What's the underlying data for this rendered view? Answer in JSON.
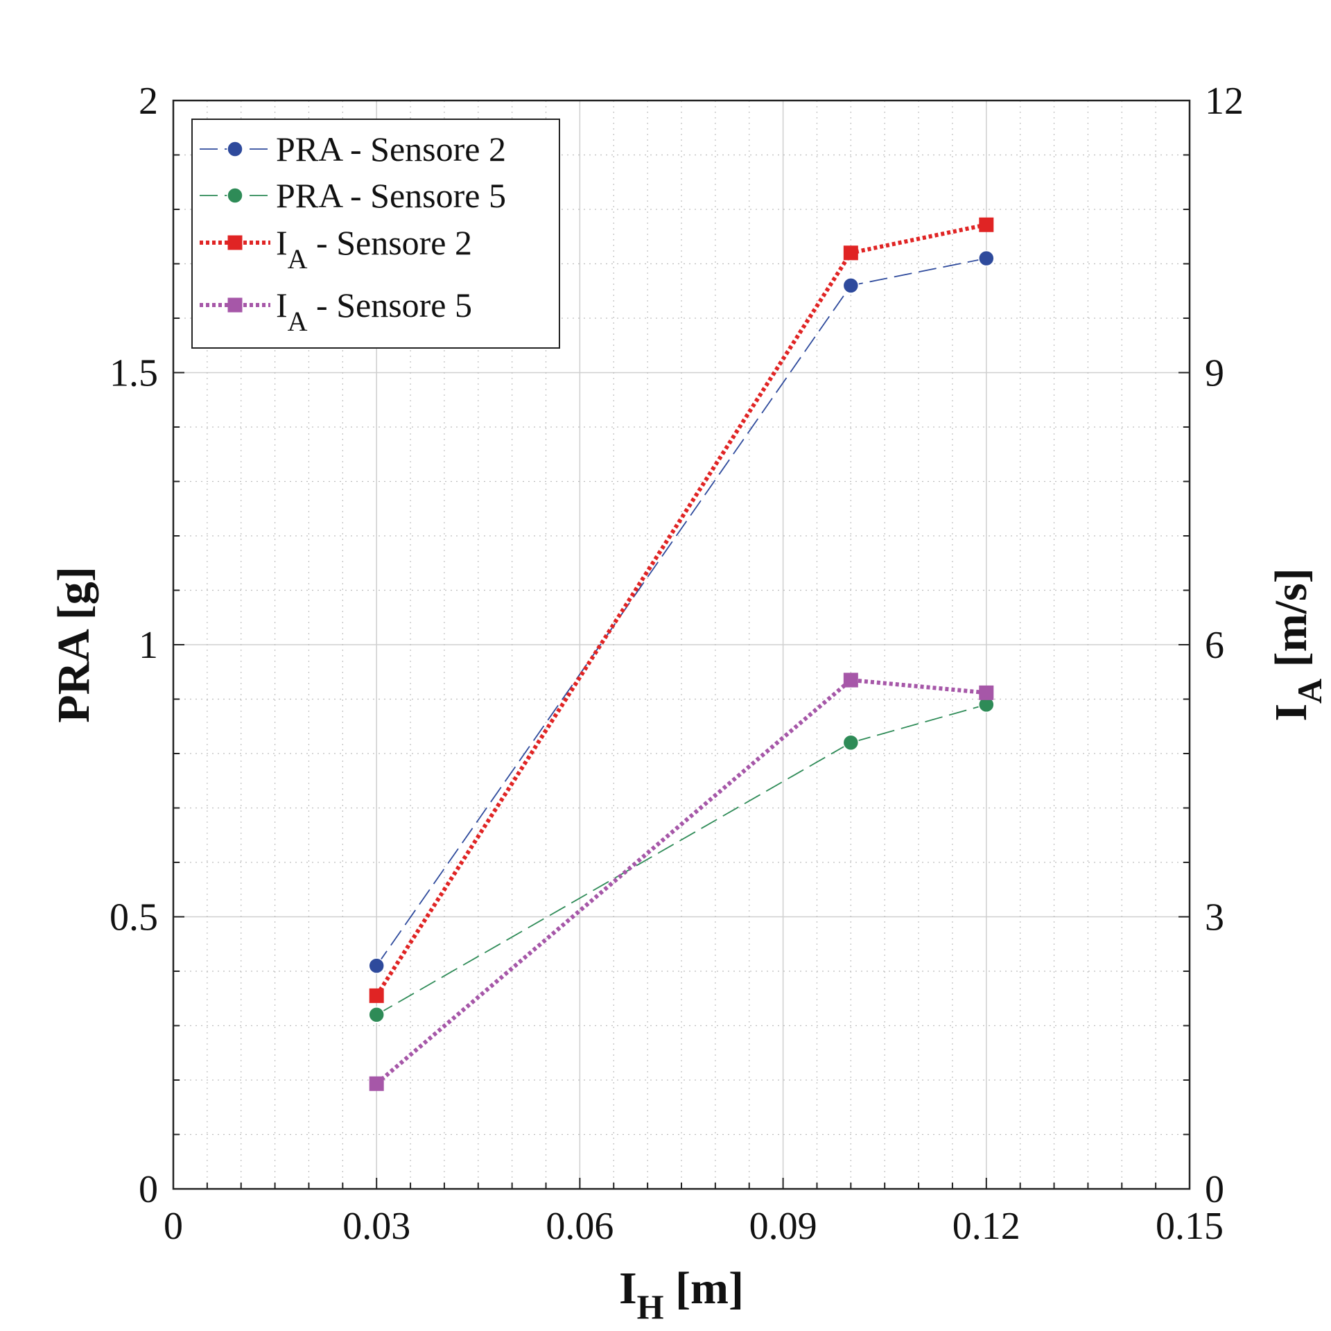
{
  "chart_data": {
    "type": "line",
    "x": [
      0.03,
      0.1,
      0.12
    ],
    "xlim": [
      0,
      0.15
    ],
    "xticks": [
      "0",
      "0.03",
      "0.06",
      "0.09",
      "0.12",
      "0.15"
    ],
    "xlabel": {
      "main": "I",
      "sub": "H",
      "rest": " [m]"
    },
    "ylim_left": [
      0,
      2
    ],
    "yticks_left": [
      "0",
      "0.5",
      "1",
      "1.5",
      "2"
    ],
    "ylabel_left": "PRA [g]",
    "ylim_right": [
      0,
      12
    ],
    "yticks_right": [
      "0",
      "3",
      "6",
      "9",
      "12"
    ],
    "ylabel_right": {
      "main": "I",
      "sub": "A",
      "rest": " [m/s]"
    },
    "grid": true,
    "legend_position": "top-left",
    "series": [
      {
        "name": {
          "main": "PRA - Sensore 2",
          "sub": "",
          "rest": ""
        },
        "axis": "left",
        "values": [
          0.41,
          1.66,
          1.71
        ],
        "color": "#2e4a9c",
        "marker": "circle",
        "line": "dashed"
      },
      {
        "name": {
          "main": "PRA - Sensore 5",
          "sub": "",
          "rest": ""
        },
        "axis": "left",
        "values": [
          0.32,
          0.82,
          0.89
        ],
        "color": "#2e8b57",
        "marker": "circle",
        "line": "dashed"
      },
      {
        "name": {
          "main": "I",
          "sub": "A",
          "rest": " - Sensore 2"
        },
        "axis": "right",
        "values": [
          2.13,
          10.32,
          10.63
        ],
        "color": "#e02424",
        "marker": "square",
        "line": "dotted"
      },
      {
        "name": {
          "main": "I",
          "sub": "A",
          "rest": " - Sensore 5"
        },
        "axis": "right",
        "values": [
          1.16,
          5.61,
          5.47
        ],
        "color": "#a657a8",
        "marker": "square",
        "line": "dotted"
      }
    ]
  }
}
